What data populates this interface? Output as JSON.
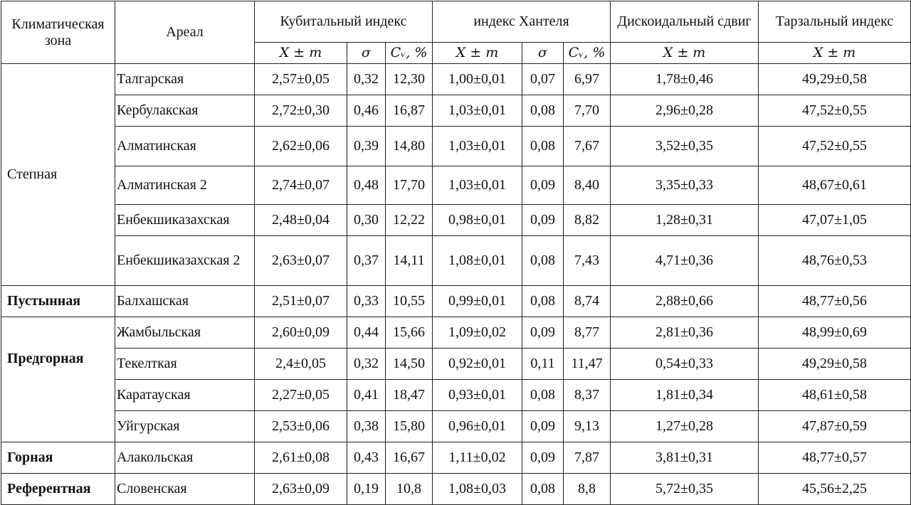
{
  "header": {
    "climate_zone": "Климатическая зона",
    "areal": "Ареал",
    "cubital": "Кубитальный индекс",
    "hantel": "индекс Хантеля",
    "discoidal": "Дискоидальный сдвиг",
    "tarsal": "Тарзальный индекс",
    "sub": {
      "mean": "X ± m",
      "sigma": "σ",
      "cv": "Cᵥ, %"
    }
  },
  "zones": {
    "steppe": "Степная",
    "desert": "Пустынная",
    "foothill": "Предгорная",
    "mountain": "Горная",
    "reference": "Референтная"
  },
  "rows": [
    {
      "areal": "Талгарская",
      "cub": "2,57±0,05",
      "cub_s": "0,32",
      "cub_cv": "12,30",
      "han": "1,00±0,01",
      "han_s": "0,07",
      "han_cv": "6,97",
      "disc": "1,78±0,46",
      "tars": "49,29±0,58"
    },
    {
      "areal": "Кербулакская",
      "cub": "2,72±0,30",
      "cub_s": "0,46",
      "cub_cv": "16,87",
      "han": "1,03±0,01",
      "han_s": "0,08",
      "han_cv": "7,70",
      "disc": "2,96±0,28",
      "tars": "47,52±0,55"
    },
    {
      "areal": "Алматинская",
      "cub": "2,62±0,06",
      "cub_s": "0,39",
      "cub_cv": "14,80",
      "han": "1,03±0,01",
      "han_s": "0,08",
      "han_cv": "7,67",
      "disc": "3,52±0,35",
      "tars": "47,52±0,55"
    },
    {
      "areal": "Алматинская 2",
      "cub": "2,74±0,07",
      "cub_s": "0,48",
      "cub_cv": "17,70",
      "han": "1,03±0,01",
      "han_s": "0,09",
      "han_cv": "8,40",
      "disc": "3,35±0,33",
      "tars": "48,67±0,61"
    },
    {
      "areal": "Енбекшиказахская",
      "cub": "2,48±0,04",
      "cub_s": "0,30",
      "cub_cv": "12,22",
      "han": "0,98±0,01",
      "han_s": "0,09",
      "han_cv": "8,82",
      "disc": "1,28±0,31",
      "tars": "47,07±1,05"
    },
    {
      "areal": "Енбекшиказахская 2",
      "cub": "2,63±0,07",
      "cub_s": "0,37",
      "cub_cv": "14,11",
      "han": "1,08±0,01",
      "han_s": "0,08",
      "han_cv": "7,43",
      "disc": "4,71±0,36",
      "tars": "48,76±0,53"
    },
    {
      "areal": "Балхашская",
      "cub": "2,51±0,07",
      "cub_s": "0,33",
      "cub_cv": "10,55",
      "han": "0,99±0,01",
      "han_s": "0,08",
      "han_cv": "8,74",
      "disc": "2,88±0,66",
      "tars": "48,77±0,56"
    },
    {
      "areal": "Жамбыльская",
      "cub": "2,60±0,09",
      "cub_s": "0,44",
      "cub_cv": "15,66",
      "han": "1,09±0,02",
      "han_s": "0,09",
      "han_cv": "8,77",
      "disc": "2,81±0,36",
      "tars": "48,99±0,69"
    },
    {
      "areal": "Текелткая",
      "cub": "2,4±0,05",
      "cub_s": "0,32",
      "cub_cv": "14,50",
      "han": "0,92±0,01",
      "han_s": "0,11",
      "han_cv": "11,47",
      "disc": "0,54±0,33",
      "tars": "49,29±0,58"
    },
    {
      "areal": "Каратауская",
      "cub": "2,27±0,05",
      "cub_s": "0,41",
      "cub_cv": "18,47",
      "han": "0,93±0,01",
      "han_s": "0,08",
      "han_cv": "8,37",
      "disc": "1,81±0,34",
      "tars": "48,61±0,58"
    },
    {
      "areal": "Уйгурская",
      "cub": "2,53±0,06",
      "cub_s": "0,38",
      "cub_cv": "15,80",
      "han": "0,96±0,01",
      "han_s": "0,09",
      "han_cv": "9,13",
      "disc": "1,27±0,28",
      "tars": "47,87±0,59"
    },
    {
      "areal": "Алакольская",
      "cub": "2,61±0,08",
      "cub_s": "0,43",
      "cub_cv": "16,67",
      "han": "1,11±0,02",
      "han_s": "0,09",
      "han_cv": "7,87",
      "disc": "3,81±0,31",
      "tars": "48,77±0,57"
    },
    {
      "areal": "Словенская",
      "cub": "2,63±0,09",
      "cub_s": "0,19",
      "cub_cv": "10,8",
      "han": "1,08±0,03",
      "han_s": "0,08",
      "han_cv": "8,8",
      "disc": "5,72±0,35",
      "tars": "45,56±2,25"
    }
  ]
}
